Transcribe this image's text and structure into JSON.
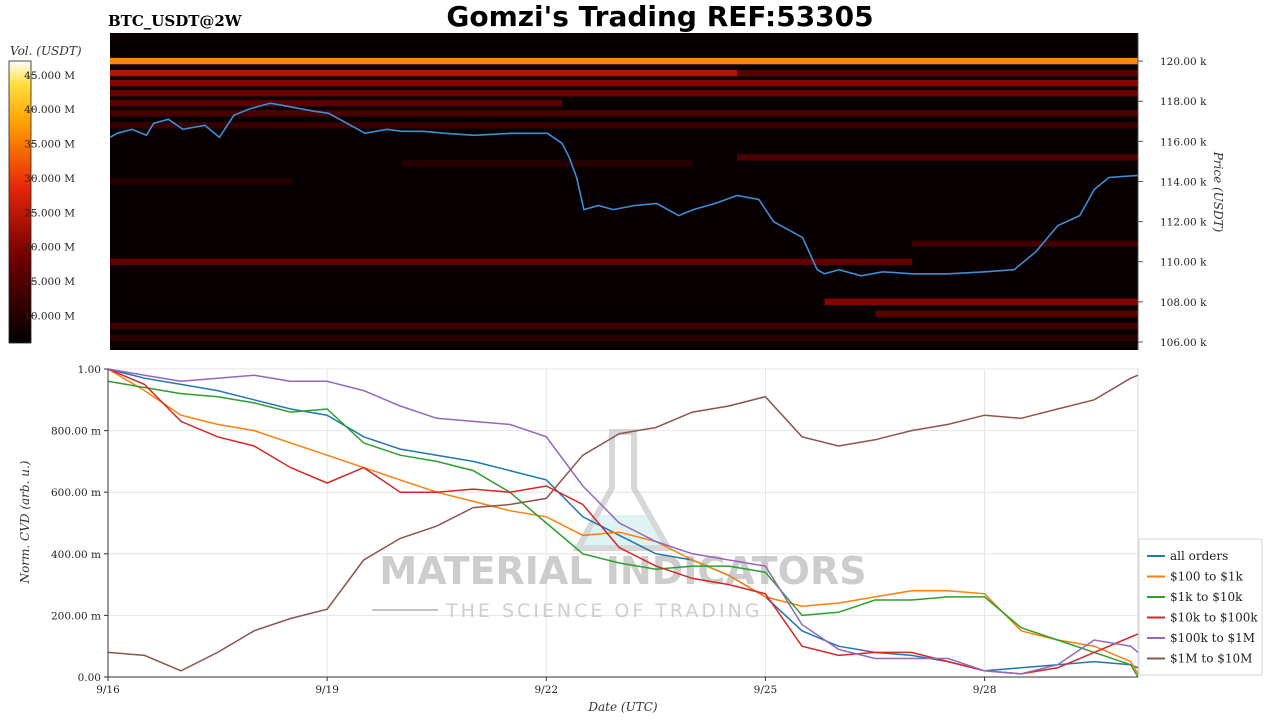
{
  "header": {
    "title": "Gomzi's Trading REF:53305",
    "subtitle": "BTC_USDT@2W"
  },
  "watermark": {
    "line1": "MATERIAL INDICATORS",
    "line2": "THE SCIENCE OF TRADING"
  },
  "colors": {
    "all_orders": "#1f77b4",
    "usd100_1k": "#ff7f0e",
    "usd1k_10k": "#2ca02c",
    "usd10k_100k": "#d62728",
    "usd100k_1m": "#9467bd",
    "usd1m_10m": "#8c564b",
    "heatmap_bg": "#080000"
  },
  "chart_data": [
    {
      "type": "heatmap",
      "colorbar_label": "Vol. (USDT)",
      "colorbar_ticks": [
        "10.000 M",
        "15.000 M",
        "20.000 M",
        "25.000 M",
        "30.000 M",
        "35.000 M",
        "40.000 M",
        "45.000 M"
      ],
      "colorbar_range": [
        6,
        47
      ],
      "ylabel": "Price (USDT)",
      "y_ticks": [
        "106.00 k",
        "108.00 k",
        "110.00 k",
        "112.00 k",
        "114.00 k",
        "116.00 k",
        "118.00 k",
        "120.00 k"
      ],
      "ylim": [
        105.6,
        121.4
      ],
      "xlim": [
        0,
        14.1
      ],
      "bands": [
        {
          "price": 120.0,
          "x0": 0,
          "x1": 14.1,
          "vol": 36
        },
        {
          "price": 119.4,
          "x0": 0,
          "x1": 8.6,
          "vol": 24
        },
        {
          "price": 119.4,
          "x0": 8.6,
          "x1": 14.1,
          "vol": 16
        },
        {
          "price": 118.9,
          "x0": 0,
          "x1": 14.1,
          "vol": 20
        },
        {
          "price": 118.4,
          "x0": 0,
          "x1": 14.1,
          "vol": 18
        },
        {
          "price": 117.9,
          "x0": 0,
          "x1": 6.2,
          "vol": 16
        },
        {
          "price": 117.4,
          "x0": 0,
          "x1": 14.1,
          "vol": 14
        },
        {
          "price": 116.8,
          "x0": 0,
          "x1": 14.1,
          "vol": 12
        },
        {
          "price": 115.2,
          "x0": 8.6,
          "x1": 14.1,
          "vol": 14
        },
        {
          "price": 114.9,
          "x0": 4.0,
          "x1": 8.0,
          "vol": 10
        },
        {
          "price": 114.0,
          "x0": 0,
          "x1": 2.5,
          "vol": 10
        },
        {
          "price": 110.9,
          "x0": 11.0,
          "x1": 14.1,
          "vol": 13
        },
        {
          "price": 110.0,
          "x0": 0,
          "x1": 11.0,
          "vol": 17
        },
        {
          "price": 108.0,
          "x0": 9.8,
          "x1": 14.1,
          "vol": 20
        },
        {
          "price": 107.4,
          "x0": 10.5,
          "x1": 14.1,
          "vol": 16
        },
        {
          "price": 106.8,
          "x0": 0,
          "x1": 14.1,
          "vol": 13
        },
        {
          "price": 106.2,
          "x0": 0,
          "x1": 14.1,
          "vol": 11
        }
      ],
      "price_series": {
        "x": [
          0,
          0.1,
          0.3,
          0.5,
          0.6,
          0.8,
          1.0,
          1.3,
          1.5,
          1.7,
          1.9,
          2.2,
          2.5,
          2.8,
          3.0,
          3.3,
          3.5,
          3.8,
          4.0,
          4.3,
          4.6,
          5.0,
          5.5,
          6.0,
          6.2,
          6.3,
          6.4,
          6.5,
          6.7,
          6.9,
          7.2,
          7.5,
          7.8,
          8.0,
          8.3,
          8.6,
          8.9,
          9.1,
          9.3,
          9.5,
          9.7,
          9.8,
          10.0,
          10.3,
          10.6,
          11.0,
          11.5,
          12.0,
          12.4,
          12.7,
          13.0,
          13.3,
          13.5,
          13.7,
          14.1
        ],
        "y": [
          116.2,
          116.4,
          116.6,
          116.3,
          116.9,
          117.1,
          116.6,
          116.8,
          116.2,
          117.3,
          117.6,
          117.9,
          117.7,
          117.5,
          117.4,
          116.8,
          116.4,
          116.6,
          116.5,
          116.5,
          116.4,
          116.3,
          116.4,
          116.4,
          115.9,
          115.2,
          114.2,
          112.6,
          112.8,
          112.6,
          112.8,
          112.9,
          112.3,
          112.6,
          112.9,
          113.3,
          113.1,
          112.0,
          111.6,
          111.2,
          109.6,
          109.4,
          109.6,
          109.3,
          109.5,
          109.4,
          109.4,
          109.5,
          109.6,
          110.5,
          111.8,
          112.3,
          113.6,
          114.2,
          114.3
        ]
      }
    },
    {
      "type": "line",
      "xlabel": "Date (UTC)",
      "ylabel": "Norm. CVD (arb. u.)",
      "x_ticks": [
        "9/16",
        "9/19",
        "9/22",
        "9/25",
        "9/28"
      ],
      "x_tick_pos": [
        0,
        3,
        6,
        9,
        12
      ],
      "y_ticks": [
        "0.00",
        "200.00 m",
        "400.00 m",
        "600.00 m",
        "800.00 m",
        "1.00"
      ],
      "y_tick_vals": [
        0,
        0.2,
        0.4,
        0.6,
        0.8,
        1.0
      ],
      "ylim": [
        0,
        1.0
      ],
      "xlim": [
        0,
        14.1
      ],
      "grid": true,
      "legend_position": "right",
      "x": [
        0,
        0.5,
        1,
        1.5,
        2,
        2.5,
        3,
        3.5,
        4,
        4.5,
        5,
        5.5,
        6,
        6.5,
        7,
        7.5,
        8,
        8.5,
        9,
        9.5,
        10,
        10.5,
        11,
        11.5,
        12,
        12.5,
        13,
        13.5,
        14,
        14.1
      ],
      "series": [
        {
          "name": "all orders",
          "color_key": "all_orders",
          "values": [
            1.0,
            0.97,
            0.95,
            0.93,
            0.9,
            0.87,
            0.85,
            0.78,
            0.74,
            0.72,
            0.7,
            0.67,
            0.64,
            0.52,
            0.46,
            0.4,
            0.38,
            0.33,
            0.26,
            0.15,
            0.1,
            0.08,
            0.07,
            0.05,
            0.02,
            0.03,
            0.04,
            0.05,
            0.04,
            0.03
          ]
        },
        {
          "name": "$100 to $1k",
          "color_key": "usd100_1k",
          "values": [
            1.0,
            0.93,
            0.85,
            0.82,
            0.8,
            0.76,
            0.72,
            0.68,
            0.64,
            0.6,
            0.57,
            0.54,
            0.52,
            0.46,
            0.47,
            0.44,
            0.38,
            0.33,
            0.26,
            0.23,
            0.24,
            0.26,
            0.28,
            0.28,
            0.27,
            0.15,
            0.12,
            0.1,
            0.05,
            0.01
          ]
        },
        {
          "name": "$1k to $10k",
          "color_key": "usd1k_10k",
          "values": [
            0.96,
            0.94,
            0.92,
            0.91,
            0.89,
            0.86,
            0.87,
            0.76,
            0.72,
            0.7,
            0.67,
            0.6,
            0.5,
            0.4,
            0.37,
            0.35,
            0.36,
            0.36,
            0.34,
            0.2,
            0.21,
            0.25,
            0.25,
            0.26,
            0.26,
            0.16,
            0.12,
            0.08,
            0.04,
            0.0
          ]
        },
        {
          "name": "$10k to $100k",
          "color_key": "usd10k_100k",
          "values": [
            1.0,
            0.95,
            0.83,
            0.78,
            0.75,
            0.68,
            0.63,
            0.68,
            0.6,
            0.6,
            0.61,
            0.6,
            0.62,
            0.56,
            0.42,
            0.36,
            0.32,
            0.3,
            0.27,
            0.1,
            0.07,
            0.08,
            0.08,
            0.05,
            0.02,
            0.01,
            0.03,
            0.08,
            0.13,
            0.14
          ]
        },
        {
          "name": "$100k to $1M",
          "color_key": "usd100k_1m",
          "values": [
            1.0,
            0.98,
            0.96,
            0.97,
            0.98,
            0.96,
            0.96,
            0.93,
            0.88,
            0.84,
            0.83,
            0.82,
            0.78,
            0.62,
            0.5,
            0.44,
            0.4,
            0.38,
            0.36,
            0.17,
            0.09,
            0.06,
            0.06,
            0.06,
            0.02,
            0.01,
            0.04,
            0.12,
            0.1,
            0.08
          ]
        },
        {
          "name": "$1M to $10M",
          "color_key": "usd1m_10m",
          "values": [
            0.08,
            0.07,
            0.02,
            0.08,
            0.15,
            0.19,
            0.22,
            0.38,
            0.45,
            0.49,
            0.55,
            0.56,
            0.58,
            0.72,
            0.79,
            0.81,
            0.86,
            0.88,
            0.91,
            0.78,
            0.75,
            0.77,
            0.8,
            0.82,
            0.85,
            0.84,
            0.87,
            0.9,
            0.97,
            0.98
          ]
        }
      ]
    }
  ]
}
